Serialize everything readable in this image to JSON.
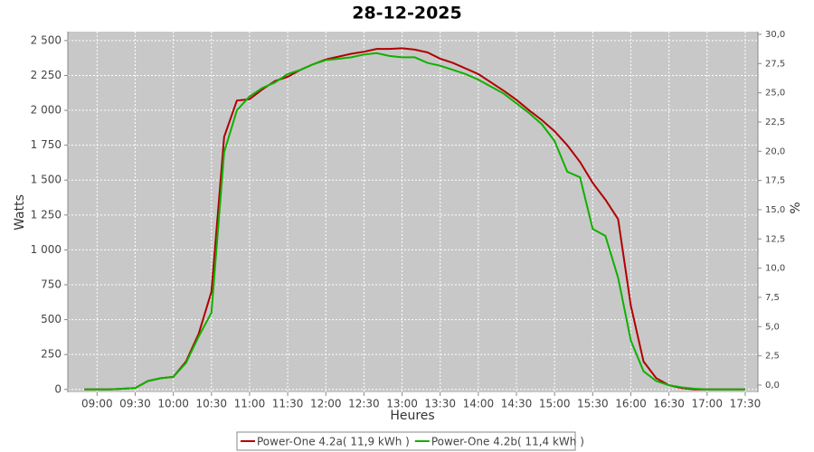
{
  "chart_data": {
    "type": "line",
    "title": "28-12-2025",
    "x_label": "Heures",
    "y_label": "Watts",
    "y2_label": "%",
    "x": [
      "08:50",
      "09:00",
      "09:10",
      "09:20",
      "09:30",
      "09:40",
      "09:50",
      "10:00",
      "10:10",
      "10:20",
      "10:30",
      "10:40",
      "10:50",
      "11:00",
      "11:10",
      "11:20",
      "11:30",
      "11:40",
      "11:50",
      "12:00",
      "12:10",
      "12:20",
      "12:30",
      "12:40",
      "12:50",
      "13:00",
      "13:10",
      "13:20",
      "13:30",
      "13:40",
      "13:50",
      "14:00",
      "14:10",
      "14:20",
      "14:30",
      "14:40",
      "14:50",
      "15:00",
      "15:10",
      "15:20",
      "15:30",
      "15:40",
      "15:50",
      "16:00",
      "16:10",
      "16:20",
      "16:30",
      "16:40",
      "16:50",
      "17:00",
      "17:10",
      "17:20",
      "17:30"
    ],
    "series": [
      {
        "name": "Power-One 4.2a( 11,9 kWh )",
        "color": "#b00000",
        "values": [
          0,
          0,
          0,
          5,
          10,
          60,
          80,
          90,
          200,
          400,
          700,
          1810,
          2070,
          2080,
          2150,
          2210,
          2240,
          2290,
          2330,
          2365,
          2385,
          2405,
          2420,
          2440,
          2440,
          2445,
          2435,
          2415,
          2370,
          2340,
          2300,
          2260,
          2200,
          2140,
          2075,
          2000,
          1930,
          1850,
          1750,
          1630,
          1480,
          1360,
          1220,
          600,
          200,
          80,
          30,
          10,
          0,
          0,
          0,
          0,
          0
        ]
      },
      {
        "name": "Power-One 4.2b( 11,4 kWh )",
        "color": "#10b000",
        "values": [
          0,
          0,
          0,
          5,
          10,
          60,
          80,
          90,
          190,
          380,
          550,
          1700,
          2000,
          2100,
          2160,
          2200,
          2260,
          2290,
          2330,
          2360,
          2370,
          2380,
          2400,
          2410,
          2390,
          2380,
          2380,
          2340,
          2320,
          2290,
          2260,
          2220,
          2170,
          2120,
          2050,
          1980,
          1900,
          1780,
          1560,
          1520,
          1150,
          1100,
          800,
          350,
          130,
          60,
          30,
          15,
          5,
          0,
          0,
          0,
          0
        ]
      }
    ],
    "xlim": [
      "08:37",
      "17:40"
    ],
    "xticks": [
      "09:00",
      "09:30",
      "10:00",
      "10:30",
      "11:00",
      "11:30",
      "12:00",
      "12:30",
      "13:00",
      "13:30",
      "14:00",
      "14:30",
      "15:00",
      "15:30",
      "16:00",
      "16:30",
      "17:00",
      "17:30"
    ],
    "ylim": [
      -21,
      2564
    ],
    "yticks": [
      0,
      250,
      500,
      750,
      {
        "value": 1000,
        "label": "1 000"
      },
      {
        "value": 1250,
        "label": "1 250"
      },
      {
        "value": 1500,
        "label": "1 500"
      },
      {
        "value": 1750,
        "label": "1 750"
      },
      {
        "value": 2000,
        "label": "2 000"
      },
      {
        "value": 2250,
        "label": "2 250"
      },
      {
        "value": 2500,
        "label": "2 500"
      }
    ],
    "y2lim": [
      -0.62,
      30.23
    ],
    "y2ticks": [
      {
        "value": 0,
        "label": "0,0"
      },
      {
        "value": 2.5,
        "label": "2,5"
      },
      {
        "value": 5,
        "label": "5,0"
      },
      {
        "value": 7.5,
        "label": "7,5"
      },
      {
        "value": 10,
        "label": "10,0"
      },
      {
        "value": 12.5,
        "label": "12,5"
      },
      {
        "value": 15,
        "label": "15,0"
      },
      {
        "value": 17.5,
        "label": "17,5"
      },
      {
        "value": 20,
        "label": "20,0"
      },
      {
        "value": 22.5,
        "label": "22,5"
      },
      {
        "value": 25,
        "label": "25,0"
      },
      {
        "value": 27.5,
        "label": "27,5"
      },
      {
        "value": 30,
        "label": "30,0"
      }
    ],
    "grid": true,
    "legend": "bottom"
  }
}
